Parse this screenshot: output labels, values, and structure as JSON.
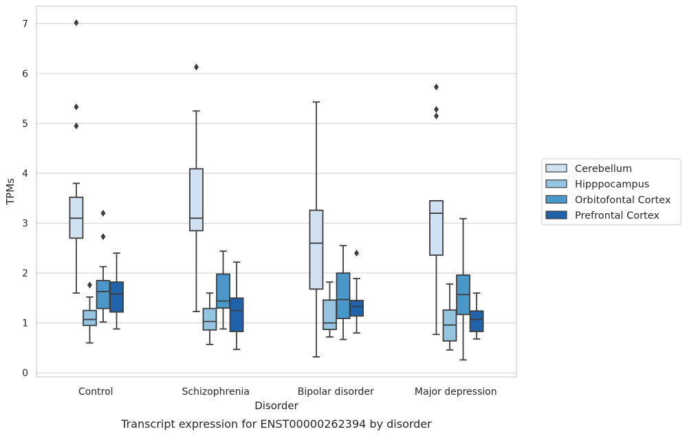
{
  "chart_data": {
    "type": "box",
    "xlabel": "Disorder",
    "ylabel": "TPMs",
    "caption": "Transcript expression for ENST00000262394 by disorder",
    "ylim": [
      -0.08,
      7.35
    ],
    "yticks": [
      0,
      1,
      2,
      3,
      4,
      5,
      6,
      7
    ],
    "grid": "horizontal",
    "legend_position": "right",
    "categories": [
      "Control",
      "Schizophrenia",
      "Bipolar disorder",
      "Major depression"
    ],
    "series": [
      {
        "name": "Cerebellum",
        "color": "#d0e1f2",
        "boxes": [
          {
            "whislo": 1.6,
            "q1": 2.7,
            "med": 3.1,
            "q3": 3.52,
            "whishi": 3.8,
            "fliers": [
              4.95,
              5.33,
              7.02
            ]
          },
          {
            "whislo": 1.23,
            "q1": 2.85,
            "med": 3.1,
            "q3": 4.09,
            "whishi": 5.25,
            "fliers": [
              6.13
            ]
          },
          {
            "whislo": 0.32,
            "q1": 1.68,
            "med": 2.6,
            "q3": 3.26,
            "whishi": 5.43,
            "fliers": []
          },
          {
            "whislo": 0.77,
            "q1": 2.36,
            "med": 3.2,
            "q3": 3.45,
            "whishi": 3.45,
            "fliers": [
              5.15,
              5.28,
              5.73
            ]
          }
        ]
      },
      {
        "name": "Hipppocampus",
        "color": "#94c4df",
        "boxes": [
          {
            "whislo": 0.6,
            "q1": 0.95,
            "med": 1.07,
            "q3": 1.25,
            "whishi": 1.52,
            "fliers": [
              1.76
            ]
          },
          {
            "whislo": 0.57,
            "q1": 0.86,
            "med": 1.03,
            "q3": 1.29,
            "whishi": 1.6,
            "fliers": []
          },
          {
            "whislo": 0.72,
            "q1": 0.87,
            "med": 1.0,
            "q3": 1.46,
            "whishi": 1.82,
            "fliers": []
          },
          {
            "whislo": 0.46,
            "q1": 0.64,
            "med": 0.96,
            "q3": 1.26,
            "whishi": 1.78,
            "fliers": []
          }
        ]
      },
      {
        "name": "Orbitofontal Cortex",
        "color": "#4a98c9",
        "boxes": [
          {
            "whislo": 1.02,
            "q1": 1.29,
            "med": 1.63,
            "q3": 1.85,
            "whishi": 2.13,
            "fliers": [
              2.73,
              3.2
            ]
          },
          {
            "whislo": 0.88,
            "q1": 1.3,
            "med": 1.44,
            "q3": 1.98,
            "whishi": 2.44,
            "fliers": []
          },
          {
            "whislo": 0.67,
            "q1": 1.09,
            "med": 1.47,
            "q3": 2.0,
            "whishi": 2.55,
            "fliers": []
          },
          {
            "whislo": 0.26,
            "q1": 1.17,
            "med": 1.57,
            "q3": 1.96,
            "whishi": 3.09,
            "fliers": []
          }
        ]
      },
      {
        "name": "Prefrontal Cortex",
        "color": "#2163aa",
        "boxes": [
          {
            "whislo": 0.88,
            "q1": 1.22,
            "med": 1.58,
            "q3": 1.82,
            "whishi": 2.4,
            "fliers": []
          },
          {
            "whislo": 0.47,
            "q1": 0.83,
            "med": 1.25,
            "q3": 1.5,
            "whishi": 2.22,
            "fliers": []
          },
          {
            "whislo": 0.8,
            "q1": 1.14,
            "med": 1.33,
            "q3": 1.45,
            "whishi": 1.89,
            "fliers": [
              2.4
            ]
          },
          {
            "whislo": 0.68,
            "q1": 0.83,
            "med": 1.07,
            "q3": 1.24,
            "whishi": 1.6,
            "fliers": []
          }
        ]
      }
    ]
  }
}
